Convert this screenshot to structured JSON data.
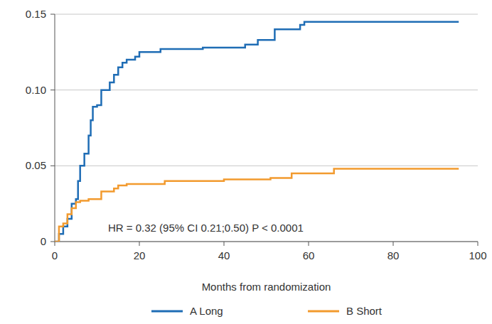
{
  "chart_data": {
    "type": "line",
    "line_style": "step",
    "x_label": "Months from randomization",
    "annotations": [
      "HR = 0.32 (95% CI 0.21;0.50) P < 0.0001"
    ],
    "xlim": [
      0,
      100
    ],
    "xticks": [
      0,
      20,
      40,
      60,
      80,
      100
    ],
    "ylim": [
      0,
      0.15
    ],
    "yticks": [
      0,
      0.05,
      {
        "value": 0.1,
        "label": "0.10"
      },
      {
        "value": 0.15,
        "label": "0.15"
      }
    ],
    "grid": true,
    "legend": "bottom",
    "series": [
      {
        "name": "A Long",
        "color": "#1f6db5",
        "x": [
          0,
          1,
          2,
          3,
          4,
          5,
          5.5,
          6,
          7,
          8,
          8.5,
          9,
          10,
          11,
          13,
          14,
          15,
          16,
          17,
          19,
          20,
          25,
          35,
          45,
          48,
          52,
          58,
          59,
          95.5
        ],
        "values": [
          0,
          0.005,
          0.01,
          0.015,
          0.025,
          0.028,
          0.04,
          0.05,
          0.058,
          0.07,
          0.08,
          0.089,
          0.09,
          0.1,
          0.105,
          0.11,
          0.115,
          0.118,
          0.12,
          0.122,
          0.125,
          0.127,
          0.128,
          0.13,
          0.133,
          0.14,
          0.143,
          0.145,
          0.145
        ]
      },
      {
        "name": "B Short",
        "color": "#f29a2e",
        "x": [
          0,
          1,
          2,
          3,
          4,
          5,
          6,
          8,
          11,
          14,
          15,
          17,
          26,
          40,
          51,
          56,
          66,
          95.5
        ],
        "values": [
          0,
          0.01,
          0.012,
          0.018,
          0.022,
          0.026,
          0.027,
          0.028,
          0.033,
          0.035,
          0.037,
          0.038,
          0.04,
          0.041,
          0.042,
          0.045,
          0.048,
          0.048
        ]
      }
    ]
  }
}
